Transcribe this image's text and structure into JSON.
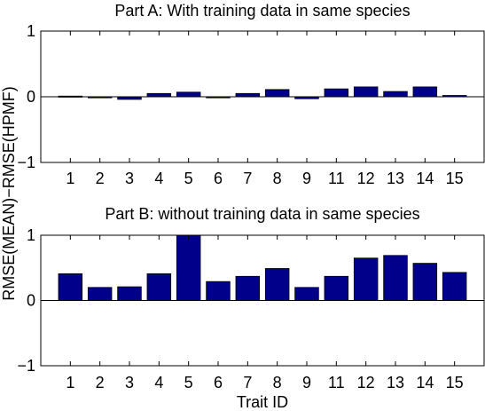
{
  "figure": {
    "ylabel": "RMSE(MEAN)−RMSE(HPMF)",
    "xlabel": "Trait ID",
    "bar_color": "#00008b"
  },
  "chart_data": [
    {
      "type": "bar",
      "title": "Part A: With training data in same species",
      "categories": [
        "1",
        "2",
        "3",
        "4",
        "5",
        "6",
        "7",
        "8",
        "9",
        "11",
        "12",
        "13",
        "14",
        "15"
      ],
      "values": [
        0.01,
        0.0,
        -0.04,
        0.05,
        0.07,
        -0.01,
        0.05,
        0.11,
        -0.03,
        0.12,
        0.15,
        0.08,
        0.15,
        0.02
      ],
      "ylim": [
        -1,
        1
      ],
      "yticks": [
        -1,
        0,
        1
      ],
      "grid": false
    },
    {
      "type": "bar",
      "title": "Part B: without training data in same species",
      "categories": [
        "1",
        "2",
        "3",
        "4",
        "5",
        "6",
        "7",
        "8",
        "9",
        "11",
        "12",
        "13",
        "14",
        "15"
      ],
      "values": [
        0.41,
        0.2,
        0.21,
        0.41,
        1.0,
        0.29,
        0.37,
        0.49,
        0.2,
        0.37,
        0.65,
        0.69,
        0.57,
        0.43
      ],
      "ylim": [
        -1,
        1
      ],
      "yticks": [
        -1,
        0,
        1
      ],
      "grid": false
    }
  ]
}
